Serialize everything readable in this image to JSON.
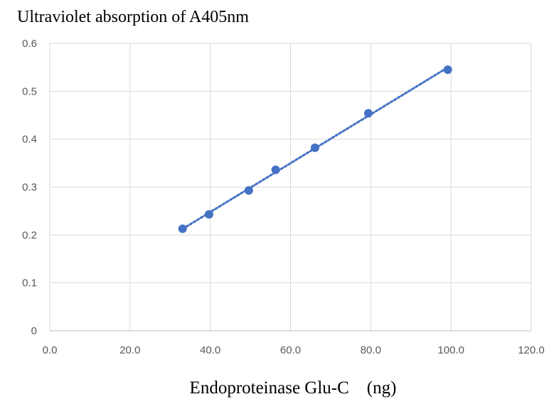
{
  "chart_data": {
    "type": "scatter",
    "title": "Ultraviolet absorption of A405nm",
    "xlabel": "Endoproteinase Glu-C　(ng)",
    "ylabel": "",
    "xlim": [
      0,
      120
    ],
    "ylim": [
      0,
      0.6
    ],
    "x_ticks": [
      0,
      20,
      40,
      60,
      80,
      100,
      120
    ],
    "x_tick_labels": [
      "0.0",
      "20.0",
      "40.0",
      "60.0",
      "80.0",
      "100.0",
      "120.0"
    ],
    "y_ticks": [
      0,
      0.1,
      0.2,
      0.3,
      0.4,
      0.5,
      0.6
    ],
    "y_tick_labels": [
      "0",
      "0.1",
      "0.2",
      "0.3",
      "0.4",
      "0.5",
      "0.6"
    ],
    "grid": true,
    "trendline": "linear",
    "series": [
      {
        "x": [
          33.1,
          39.7,
          49.6,
          56.3,
          66.1,
          79.4,
          99.2
        ],
        "y": [
          0.213,
          0.243,
          0.293,
          0.336,
          0.382,
          0.454,
          0.545
        ]
      }
    ],
    "colors": {
      "point": "#4472c4",
      "trend": "#4472c4",
      "grid": "#d9d9d9"
    }
  }
}
